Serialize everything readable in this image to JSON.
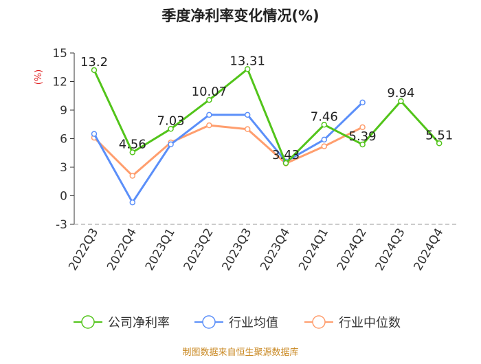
{
  "chart_data": {
    "type": "line",
    "title": "季度净利率变化情况(%)",
    "ylabel": "(%)",
    "xlabel": "",
    "categories": [
      "2022Q3",
      "2022Q4",
      "2023Q1",
      "2023Q2",
      "2023Q3",
      "2023Q4",
      "2024Q1",
      "2024Q2",
      "2024Q3",
      "2024Q4"
    ],
    "ylim": [
      -3,
      15
    ],
    "yticks": [
      -3,
      0,
      3,
      6,
      9,
      12,
      15
    ],
    "series": [
      {
        "name": "公司净利率",
        "color": "#52c41a",
        "values": [
          13.2,
          4.56,
          7.03,
          10.07,
          13.31,
          3.43,
          7.46,
          5.39,
          9.94,
          5.51
        ],
        "labels": [
          "13.2",
          "4.56",
          "7.03",
          "10.07",
          "13.31",
          "3.43",
          "7.46",
          "5.39",
          "9.94",
          "5.51"
        ]
      },
      {
        "name": "行业均值",
        "color": "#5b8ff9",
        "values": [
          6.5,
          -0.7,
          5.4,
          8.5,
          8.5,
          3.6,
          5.9,
          9.8,
          null,
          null
        ]
      },
      {
        "name": "行业中位数",
        "color": "#ff9e6e",
        "values": [
          6.1,
          2.1,
          5.6,
          7.4,
          7.0,
          3.4,
          5.2,
          7.2,
          null,
          null
        ]
      }
    ],
    "legend_position": "bottom",
    "grid": false
  },
  "footer": {
    "source": "制图数据来自恒生聚源数据库",
    "source_color": "#c8861e"
  },
  "axis_label_color": "#e02020"
}
